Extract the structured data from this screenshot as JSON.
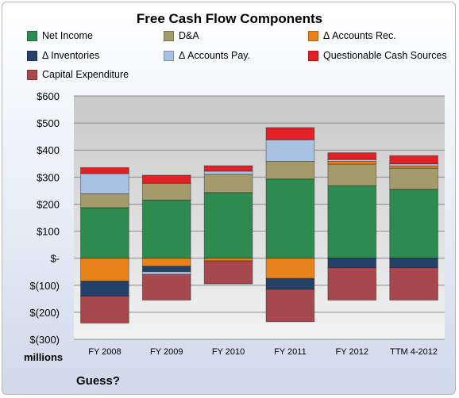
{
  "chart_data": {
    "type": "bar",
    "stacked": true,
    "title": "Free Cash Flow Components",
    "units_label": "millions",
    "footer": "Guess?",
    "categories": [
      "FY 2008",
      "FY 2009",
      "FY 2010",
      "FY 2011",
      "FY 2012",
      "TTM 4-2012"
    ],
    "y_tick_labels": [
      "$600",
      "$500",
      "$400",
      "$300",
      "$200",
      "$100",
      "$-",
      "$(100)",
      "$(200)",
      "$(300)"
    ],
    "ylim": [
      -300,
      600
    ],
    "grid": true,
    "legend_position": "top",
    "series": [
      {
        "name": "Net Income",
        "color": "#2e8b4f",
        "values": [
          187,
          215,
          243,
          293,
          268,
          255
        ]
      },
      {
        "name": "D&A",
        "color": "#a59a6a",
        "values": [
          51,
          62,
          67,
          65,
          80,
          78
        ]
      },
      {
        "name": "Δ Accounts Rec.",
        "color": "#e8831c",
        "values": [
          -85,
          -30,
          -10,
          -75,
          10,
          8
        ]
      },
      {
        "name": "Δ Inventories",
        "color": "#24416a",
        "values": [
          -55,
          -20,
          0,
          -40,
          -35,
          -35
        ]
      },
      {
        "name": "Δ Accounts Pay.",
        "color": "#a9c1e3",
        "values": [
          75,
          -10,
          12,
          80,
          7,
          8
        ]
      },
      {
        "name": "Questionable Cash Sources",
        "color": "#e32125",
        "values": [
          22,
          30,
          20,
          45,
          25,
          30
        ]
      },
      {
        "name": "Capital Expenditure",
        "color": "#a6484e",
        "values": [
          -100,
          -95,
          -85,
          -120,
          -120,
          -120
        ]
      }
    ]
  }
}
